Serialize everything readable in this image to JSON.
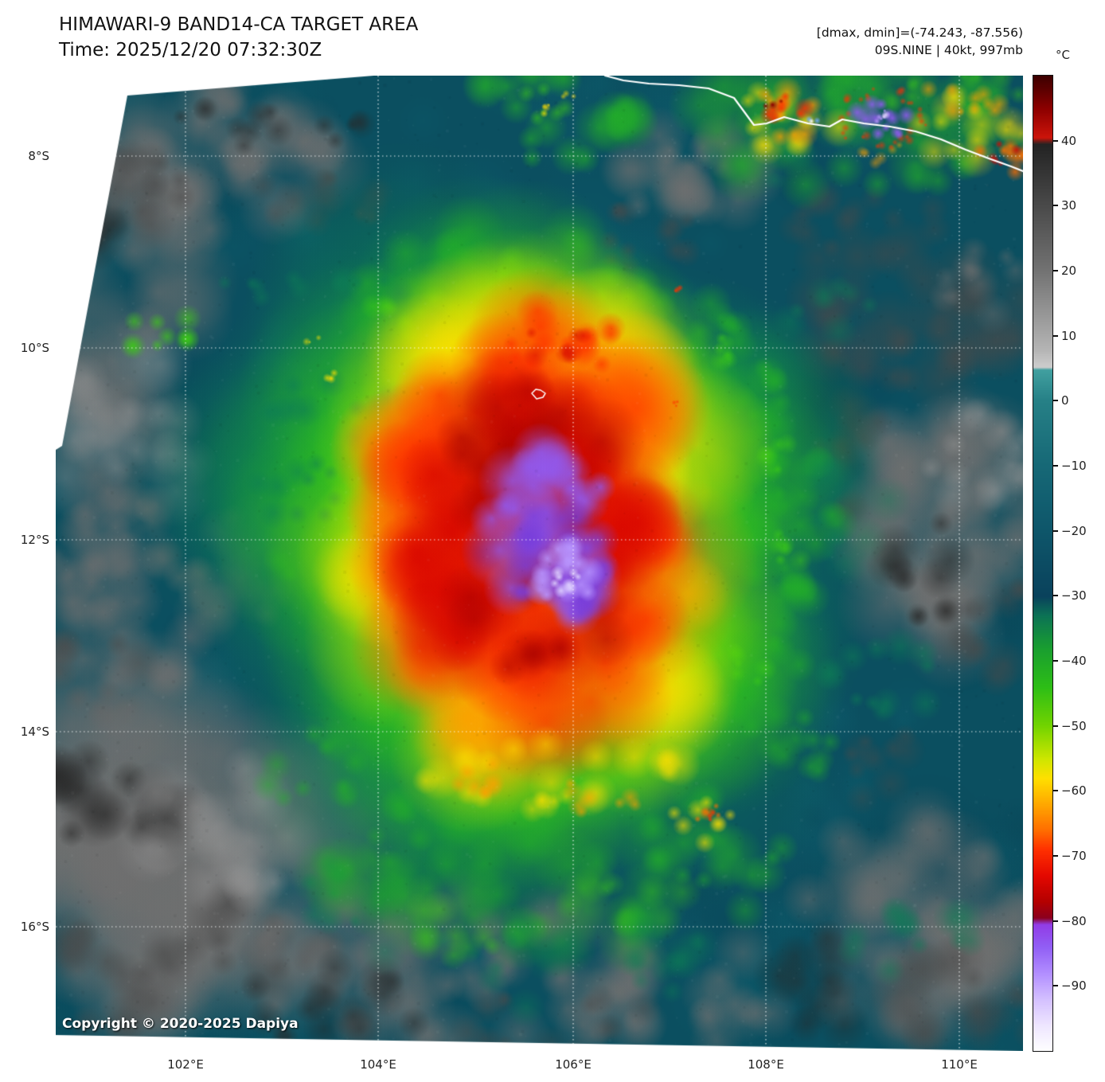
{
  "header": {
    "title": "HIMAWARI-9 BAND14-CA TARGET AREA",
    "time_line": "Time: 2025/12/20 07:32:30Z",
    "dmax_dmin_line": "[dmax, dmin]=(-74.243, -87.556)",
    "storm_line": "09S.NINE | 40kt, 997mb"
  },
  "map": {
    "lat_labels": [
      "8°S",
      "10°S",
      "12°S",
      "14°S",
      "16°S"
    ],
    "lon_labels": [
      "102°E",
      "104°E",
      "106°E",
      "108°E",
      "110°E"
    ],
    "copyright": "Copyright © 2020-2025 Dapiya"
  },
  "colorbar": {
    "unit_label": "°C",
    "tick_labels": [
      "40",
      "30",
      "20",
      "10",
      "0",
      "−10",
      "−20",
      "−30",
      "−40",
      "−50",
      "−60",
      "−70",
      "−80",
      "−90"
    ]
  }
}
